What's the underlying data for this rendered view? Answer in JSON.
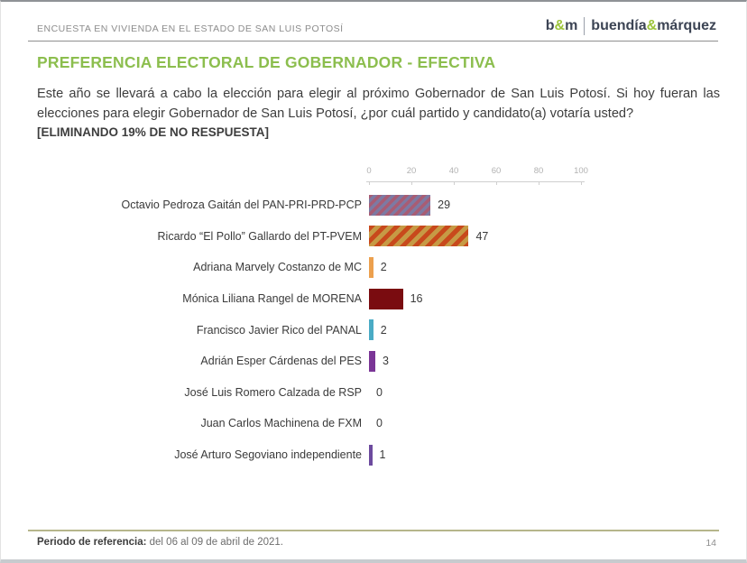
{
  "header": {
    "survey_title": "ENCUESTA EN VIVIENDA EN EL ESTADO DE SAN LUIS POTOSÍ",
    "logo": {
      "short_pre": "b",
      "short_amp": "&",
      "short_post": "m",
      "full_pre": "buendía",
      "full_amp": "&",
      "full_post": "márquez",
      "accent_color": "#9dc43b",
      "text_color": "#3c4454"
    }
  },
  "title": "PREFERENCIA ELECTORAL DE GOBERNADOR - EFECTIVA",
  "title_color": "#8cbe4e",
  "question": {
    "text": "Este año se llevará a cabo la elección para elegir al próximo Gobernador de San Luis Potosí. Si hoy fueran las elecciones para elegir Gobernador de San Luis Potosí, ¿por cuál partido y candidato(a) votaría usted?",
    "note": "[ELIMINANDO 19% DE NO RESPUESTA]"
  },
  "chart_data": {
    "type": "bar",
    "orientation": "horizontal",
    "categories": [
      "Octavio Pedroza Gaitán del PAN-PRI-PRD-PCP",
      "Ricardo “El Pollo” Gallardo del PT-PVEM",
      "Adriana Marvely Costanzo de MC",
      "Mónica Liliana Rangel de MORENA",
      "Francisco Javier Rico del PANAL",
      "Adrián Esper Cárdenas del PES",
      "José Luis Romero Calzada de RSP",
      "Juan Carlos Machinena de FXM",
      "José Arturo Segoviano independiente"
    ],
    "values": [
      29,
      47,
      2,
      16,
      2,
      3,
      0,
      0,
      1
    ],
    "bar_styles": [
      {
        "pattern": [
          "#a85c74",
          "#7d7aa3"
        ],
        "stripe": 3.5
      },
      {
        "pattern": [
          "#c8491c",
          "#c69a45"
        ],
        "stripe": 5
      },
      {
        "color": "#eca04e"
      },
      {
        "color": "#7a0c10"
      },
      {
        "color": "#4aabc5"
      },
      {
        "color": "#7a3596"
      },
      {
        "color": null
      },
      {
        "color": null
      },
      {
        "color": "#6c4a9e"
      }
    ],
    "axis_ticks": [
      0,
      20,
      40,
      60,
      80,
      100
    ],
    "xlim": [
      0,
      100
    ],
    "grid": false,
    "legend": false
  },
  "footer": {
    "label": "Periodo de referencia:",
    "value": " del 06 al 09 de abril de 2021.",
    "page_number": "14"
  }
}
